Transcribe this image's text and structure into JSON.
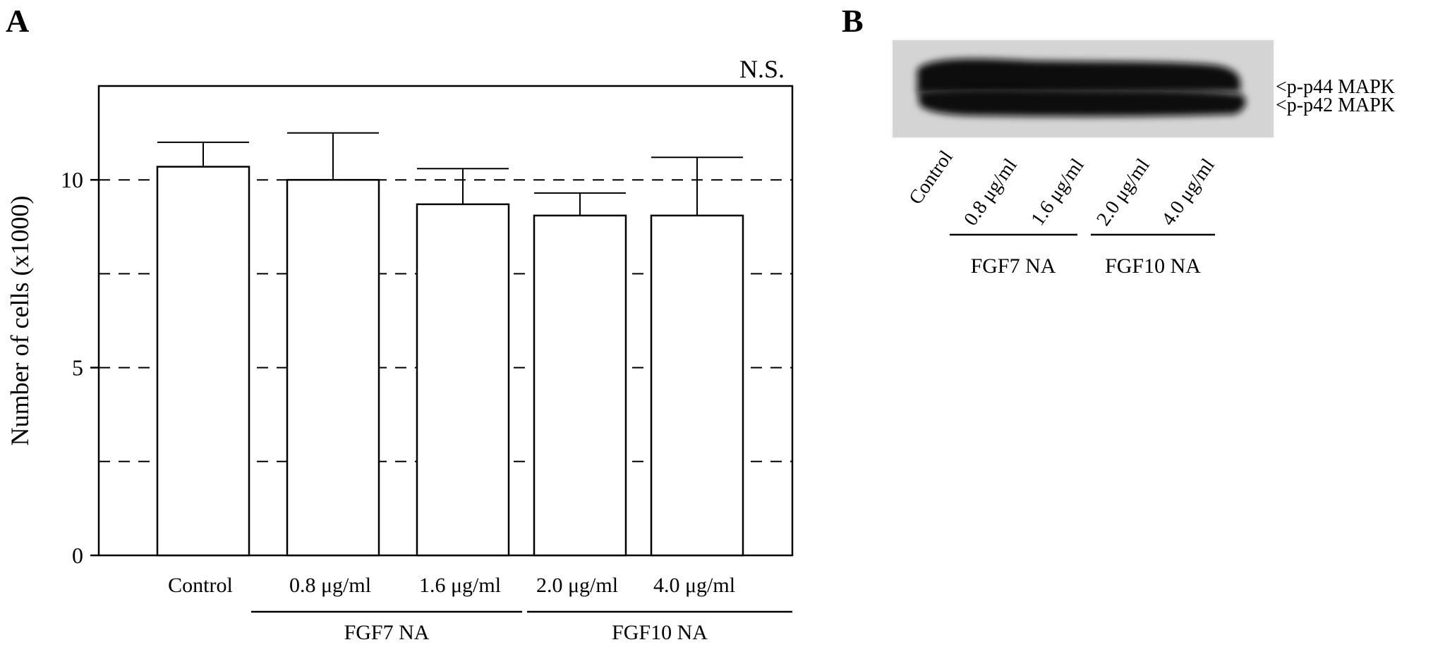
{
  "panel_a": {
    "label": "A"
  },
  "panel_b": {
    "label": "B",
    "lanes": [
      "Control",
      "0.8 μg/ml",
      "1.6 μg/ml",
      "2.0 μg/ml",
      "4.0 μg/ml"
    ],
    "band_labels": [
      "<p-p44 MAPK",
      "<p-p42 MAPK"
    ],
    "groups": [
      "FGF7 NA",
      "FGF10 NA"
    ]
  },
  "chart_data": {
    "type": "bar",
    "title": "",
    "xlabel": "",
    "ylabel": "Number of cells (x1000)",
    "ylim": [
      0,
      12.5
    ],
    "yticks": [
      0,
      5,
      10
    ],
    "grid": "dashed horizontal at 2.5, 5, 7.5, 10",
    "categories": [
      "Control",
      "0.8 μg/ml",
      "1.6 μg/ml",
      "2.0 μg/ml",
      "4.0 μg/ml"
    ],
    "values": [
      10.35,
      10.0,
      9.35,
      9.05,
      9.05
    ],
    "error_upper": [
      0.65,
      1.25,
      0.95,
      0.6,
      1.55
    ],
    "groups": [
      {
        "label": "FGF7 NA",
        "categories": [
          "0.8 μg/ml",
          "1.6 μg/ml"
        ]
      },
      {
        "label": "FGF10 NA",
        "categories": [
          "2.0 μg/ml",
          "4.0 μg/ml"
        ]
      }
    ],
    "annotation": "N.S."
  }
}
